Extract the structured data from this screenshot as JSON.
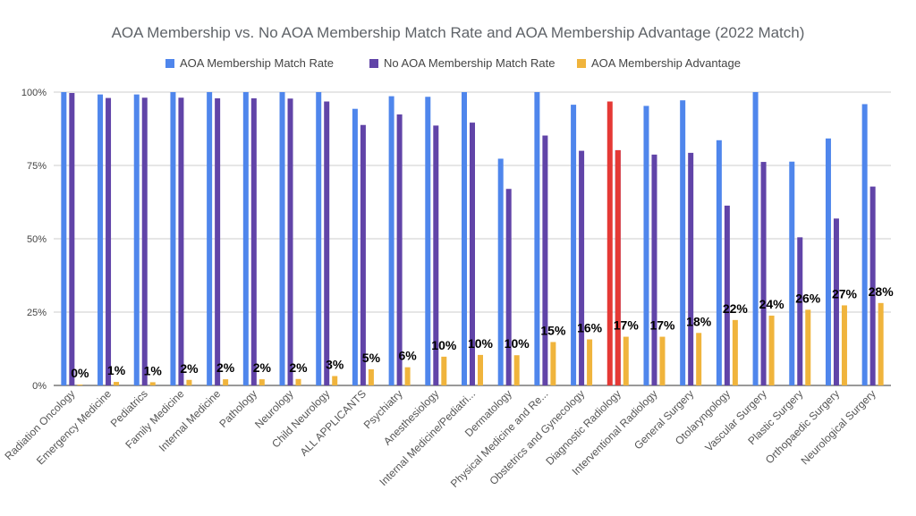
{
  "chart_data": {
    "type": "bar",
    "title": "AOA Membership vs. No AOA Membership Match Rate and AOA Membership Advantage (2022 Match)",
    "categories": [
      "Radiation Oncology",
      "Emergency Medicine",
      "Pediatrics",
      "Family Medicine",
      "Internal Medicine",
      "Pathology",
      "Neurology",
      "Child Neurology",
      "ALL APPLICANTS",
      "Psychiatry",
      "Anesthesiology",
      "Internal Medicine/Pediatri...",
      "Dermatology",
      "Physical Medicine and Re...",
      "Obstetrics and Gynecology",
      "Diagnostic Radiology",
      "Interventional Radiology",
      "General Surgery",
      "Otolaryngology",
      "Vascular Surgery",
      "Plastic Surgery",
      "Orthopaedic Surgery",
      "Neurological Surgery"
    ],
    "series": [
      {
        "name": "AOA Membership Match Rate",
        "color": "#4f86ec",
        "values": [
          100,
          99.2,
          99.2,
          100,
          100,
          100,
          100,
          100,
          94.3,
          98.6,
          98.4,
          100,
          77.3,
          100,
          95.7,
          96.8,
          95.3,
          97.2,
          83.6,
          100,
          76.3,
          84.2,
          95.9
        ]
      },
      {
        "name": "No AOA Membership Match Rate",
        "color": "#6144a8",
        "values": [
          99.7,
          98.0,
          98.1,
          98.1,
          97.9,
          97.9,
          97.8,
          96.8,
          88.8,
          92.4,
          88.6,
          89.6,
          67.0,
          85.2,
          80.0,
          80.2,
          78.7,
          79.3,
          61.3,
          76.2,
          50.5,
          56.9,
          67.8
        ]
      },
      {
        "name": "AOA Membership Advantage",
        "color": "#f0b43c",
        "values": [
          0.3,
          1.2,
          1.1,
          1.9,
          2.1,
          2.1,
          2.2,
          3.2,
          5.5,
          6.2,
          9.8,
          10.4,
          10.3,
          14.8,
          15.7,
          16.6,
          16.6,
          17.9,
          22.3,
          23.8,
          25.8,
          27.3,
          28.1
        ]
      }
    ],
    "data_labels": [
      "0%",
      "1%",
      "1%",
      "2%",
      "2%",
      "2%",
      "2%",
      "3%",
      "5%",
      "6%",
      "10%",
      "10%",
      "10%",
      "15%",
      "16%",
      "17%",
      "17%",
      "18%",
      "22%",
      "24%",
      "26%",
      "27%",
      "28%"
    ],
    "highlight": {
      "category_index": 15,
      "color": "#e53935"
    },
    "y_ticks": [
      "0%",
      "25%",
      "50%",
      "75%",
      "100%"
    ],
    "ylim": [
      0,
      100
    ],
    "grid": true,
    "legend_position": "top"
  }
}
